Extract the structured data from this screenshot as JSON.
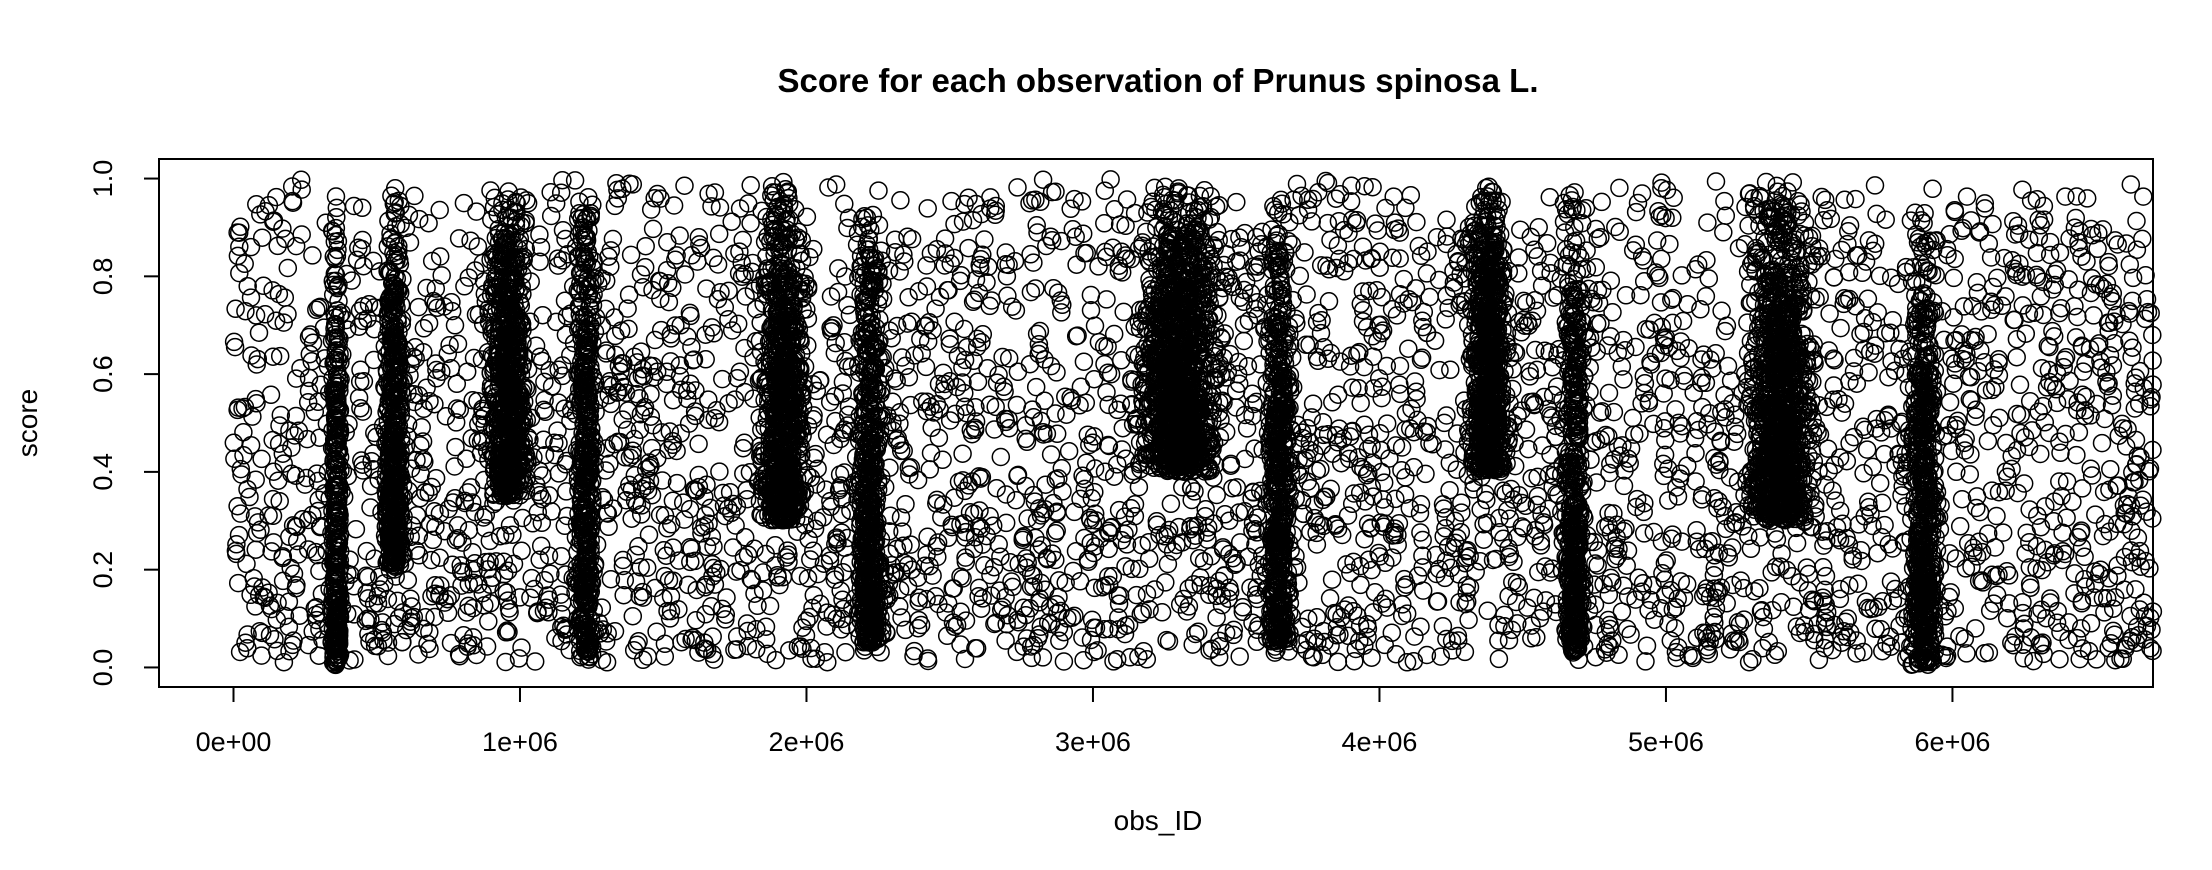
{
  "chart_data": {
    "type": "scatter",
    "title": "Score for each observation of Prunus spinosa L.",
    "xlabel": "obs_ID",
    "ylabel": "score",
    "xlim": [
      -260000,
      6700000
    ],
    "ylim": [
      -0.04,
      1.04
    ],
    "x_ticks": [
      {
        "value": 0,
        "label": "0e+00"
      },
      {
        "value": 1000000,
        "label": "1e+06"
      },
      {
        "value": 2000000,
        "label": "2e+06"
      },
      {
        "value": 3000000,
        "label": "3e+06"
      },
      {
        "value": 4000000,
        "label": "4e+06"
      },
      {
        "value": 5000000,
        "label": "5e+06"
      },
      {
        "value": 6000000,
        "label": "6e+06"
      }
    ],
    "y_ticks": [
      {
        "value": 0.0,
        "label": "0.0"
      },
      {
        "value": 0.2,
        "label": "0.2"
      },
      {
        "value": 0.4,
        "label": "0.4"
      },
      {
        "value": 0.6,
        "label": "0.6"
      },
      {
        "value": 0.8,
        "label": "0.8"
      },
      {
        "value": 1.0,
        "label": "1.0"
      }
    ],
    "grid": false,
    "legend": "none",
    "marker": "open circle",
    "color": "#000000",
    "x_range_of_points": [
      0,
      6700000
    ],
    "y_range_of_points": [
      0.01,
      1.0
    ],
    "dense_columns": [
      {
        "x": 360000,
        "y_range": [
          0.0,
          1.0
        ],
        "width": 30000
      },
      {
        "x": 560000,
        "y_range": [
          0.2,
          1.0
        ],
        "width": 60000
      },
      {
        "x": 960000,
        "y_range": [
          0.35,
          1.0
        ],
        "width": 120000
      },
      {
        "x": 1230000,
        "y_range": [
          0.02,
          1.0
        ],
        "width": 60000
      },
      {
        "x": 1920000,
        "y_range": [
          0.3,
          1.0
        ],
        "width": 140000
      },
      {
        "x": 2220000,
        "y_range": [
          0.05,
          1.0
        ],
        "width": 80000
      },
      {
        "x": 3300000,
        "y_range": [
          0.4,
          1.0
        ],
        "width": 250000
      },
      {
        "x": 3650000,
        "y_range": [
          0.05,
          1.0
        ],
        "width": 70000
      },
      {
        "x": 4380000,
        "y_range": [
          0.4,
          1.0
        ],
        "width": 120000
      },
      {
        "x": 4680000,
        "y_range": [
          0.03,
          1.0
        ],
        "width": 60000
      },
      {
        "x": 5400000,
        "y_range": [
          0.3,
          1.0
        ],
        "width": 200000
      },
      {
        "x": 5900000,
        "y_range": [
          0.0,
          0.95
        ],
        "width": 80000
      }
    ]
  }
}
